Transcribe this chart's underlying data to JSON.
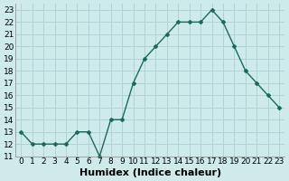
{
  "x": [
    0,
    1,
    2,
    3,
    4,
    5,
    6,
    7,
    8,
    9,
    10,
    11,
    12,
    13,
    14,
    15,
    16,
    17,
    18,
    19,
    20,
    21,
    22,
    23
  ],
  "y": [
    13,
    12,
    12,
    12,
    12,
    13,
    13,
    11,
    14,
    14,
    17,
    19,
    20,
    21,
    22,
    22,
    22,
    23,
    22,
    20,
    18,
    17,
    16,
    15
  ],
  "line_color": "#1a6b5a",
  "marker": "D",
  "marker_size": 2.0,
  "bg_color": "#ceeaea",
  "grid_color": "#b0d4d4",
  "xlabel": "Humidex (Indice chaleur)",
  "xlim": [
    -0.5,
    23.5
  ],
  "ylim": [
    11,
    23.5
  ],
  "yticks": [
    11,
    12,
    13,
    14,
    15,
    16,
    17,
    18,
    19,
    20,
    21,
    22,
    23
  ],
  "xtick_labels": [
    "0",
    "1",
    "2",
    "3",
    "4",
    "5",
    "6",
    "7",
    "8",
    "9",
    "10",
    "11",
    "12",
    "13",
    "14",
    "15",
    "16",
    "17",
    "18",
    "19",
    "20",
    "21",
    "22",
    "23"
  ],
  "tick_fontsize": 6.5,
  "xlabel_fontsize": 8,
  "line_width": 1.0
}
